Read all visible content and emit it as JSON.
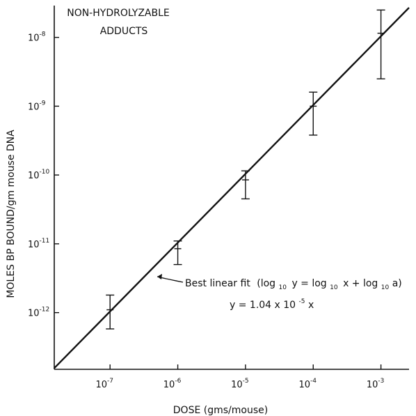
{
  "chart_data": {
    "type": "scatter",
    "title_lines": [
      "NON-HYDROLYZABLE",
      "ADDUCTS"
    ],
    "xlabel": "DOSE (gms/mouse)",
    "ylabel": "MOLES BP BOUND/gm mouse DNA",
    "x_scale": "log",
    "y_scale": "log",
    "xlim": [
      1.5e-08,
      0.0026
    ],
    "ylim": [
      1.5e-13,
      2.9e-08
    ],
    "x_ticks": [
      {
        "base": "10",
        "exp": "-7",
        "value": 1e-07
      },
      {
        "base": "10",
        "exp": "-6",
        "value": 1e-06
      },
      {
        "base": "10",
        "exp": "-5",
        "value": 1e-05
      },
      {
        "base": "10",
        "exp": "-4",
        "value": 0.0001
      },
      {
        "base": "10",
        "exp": "-3",
        "value": 0.001
      }
    ],
    "y_ticks": [
      {
        "base": "10",
        "exp": "-12",
        "value": 1e-12
      },
      {
        "base": "10",
        "exp": "-11",
        "value": 1e-11
      },
      {
        "base": "10",
        "exp": "-10",
        "value": 1e-10
      },
      {
        "base": "10",
        "exp": "-9",
        "value": 1e-09
      },
      {
        "base": "10",
        "exp": "-8",
        "value": 1e-08
      }
    ],
    "points": [
      {
        "x": 1e-07,
        "y": 1.1e-12,
        "y_low": 5.8e-13,
        "y_high": 1.8e-12
      },
      {
        "x": 1e-06,
        "y": 8.5e-12,
        "y_low": 5e-12,
        "y_high": 1.1e-11
      },
      {
        "x": 1e-05,
        "y": 8.5e-11,
        "y_low": 4.5e-11,
        "y_high": 1.15e-10
      },
      {
        "x": 0.0001,
        "y": 1e-09,
        "y_low": 3.8e-10,
        "y_high": 1.6e-09
      },
      {
        "x": 0.001,
        "y": 1.15e-08,
        "y_low": 2.5e-09,
        "y_high": 2.5e-08
      }
    ],
    "fit": {
      "slope": 1.04e-05,
      "x_range": [
        1.5e-08,
        0.0026
      ],
      "label_text": "Best linear fit",
      "label_equation": {
        "open": "(log",
        "sub": "10",
        "y1": "y = log",
        "x1": "x + log",
        "a": "a)"
      },
      "formula": {
        "lhs": "y = 1.04 x 10",
        "exp": "-5",
        "rhs": " x"
      }
    }
  }
}
